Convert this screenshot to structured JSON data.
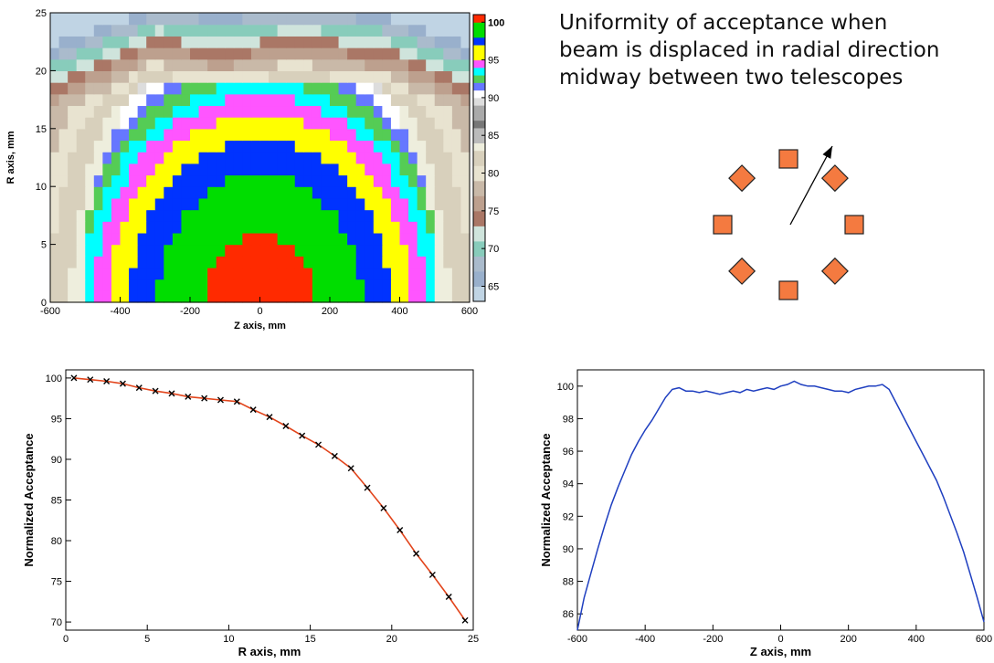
{
  "caption": {
    "lines": [
      "Uniformity of acceptance when",
      "beam is displaced in radial direction",
      "midway between two telescopes"
    ]
  },
  "colors": {
    "telescope_fill": "#f47a40",
    "telescope_stroke": "#222222",
    "fit_line": "#e2451c",
    "scan_line": "#1f3fc0",
    "marker": "#000000"
  },
  "telescopes": {
    "count": 8,
    "shapes": [
      "square",
      "diamond",
      "square",
      "diamond",
      "square",
      "diamond",
      "square",
      "diamond"
    ]
  },
  "chart_data": [
    {
      "type": "heatmap",
      "title": "",
      "xlabel": "Z axis, mm",
      "ylabel": "R axis, mm",
      "xlim": [
        -600,
        600
      ],
      "ylim": [
        0,
        25
      ],
      "x_ticks": [
        "-600",
        "-400",
        "-200",
        "0",
        "200",
        "400",
        "600"
      ],
      "y_ticks": [
        "0",
        "5",
        "10",
        "15",
        "20",
        "25"
      ],
      "z_ticks": [
        "100",
        "95",
        "90",
        "85",
        "80",
        "75",
        "70",
        "65"
      ],
      "zlim": [
        63,
        101
      ],
      "grid": false,
      "contour_half_width": [
        {
          "r": 0,
          "widths": [
            330,
            340,
            360,
            380,
            410,
            450,
            500,
            540
          ]
        },
        {
          "r": 5,
          "widths": [
            310,
            330,
            350,
            370,
            400,
            445,
            490,
            530
          ]
        },
        {
          "r": 10,
          "widths": [
            150,
            250,
            300,
            330,
            360,
            410,
            460,
            500
          ]
        },
        {
          "r": 15,
          "widths": [
            0,
            0,
            0,
            100,
            250,
            330,
            390,
            430
          ]
        },
        {
          "r": 20,
          "widths": [
            0,
            0,
            0,
            0,
            0,
            100,
            230,
            320
          ]
        }
      ],
      "contour_levels": [
        100,
        97.5,
        95,
        93,
        91,
        88,
        83,
        78
      ]
    },
    {
      "type": "scatter",
      "title": "",
      "xlabel": "R axis, mm",
      "ylabel": "Normalized Acceptance",
      "xlim": [
        0,
        25
      ],
      "ylim": [
        69,
        101
      ],
      "x_ticks": [
        "0",
        "5",
        "10",
        "15",
        "20",
        "25"
      ],
      "y_ticks": [
        "100",
        "95",
        "90",
        "85",
        "80",
        "75",
        "70"
      ],
      "grid": false,
      "series": [
        {
          "x": [
            0.5,
            1.5,
            2.5,
            3.5,
            4.5,
            5.5,
            6.5,
            7.5,
            8.5,
            9.5,
            10.5,
            11.5,
            12.5,
            13.5,
            14.5,
            15.5,
            16.5,
            17.5,
            18.5,
            19.5,
            20.5,
            21.5,
            22.5,
            23.5,
            24.5
          ],
          "y": [
            100,
            99.8,
            99.6,
            99.3,
            98.8,
            98.4,
            98.1,
            97.7,
            97.5,
            97.3,
            97.1,
            96.1,
            95.2,
            94.1,
            92.9,
            91.8,
            90.4,
            88.9,
            86.5,
            84.0,
            81.3,
            78.4,
            75.8,
            73.1,
            70.2
          ]
        }
      ]
    },
    {
      "type": "line",
      "title": "",
      "xlabel": "Z axis, mm",
      "ylabel": "Normalized Acceptance",
      "xlim": [
        -600,
        600
      ],
      "ylim": [
        85,
        101
      ],
      "x_ticks": [
        "-600",
        "-400",
        "-200",
        "0",
        "200",
        "400",
        "600"
      ],
      "y_ticks": [
        "100",
        "98",
        "96",
        "94",
        "92",
        "90",
        "88",
        "86"
      ],
      "grid": false,
      "series": [
        {
          "x": [
            -600,
            -580,
            -560,
            -540,
            -520,
            -500,
            -480,
            -460,
            -440,
            -420,
            -400,
            -380,
            -360,
            -340,
            -320,
            -300,
            -280,
            -260,
            -240,
            -220,
            -200,
            -180,
            -160,
            -140,
            -120,
            -100,
            -80,
            -60,
            -40,
            -20,
            0,
            20,
            40,
            60,
            80,
            100,
            120,
            140,
            160,
            180,
            200,
            220,
            240,
            260,
            280,
            300,
            320,
            340,
            360,
            380,
            400,
            420,
            440,
            460,
            480,
            500,
            520,
            540,
            560,
            580,
            600
          ],
          "y": [
            85.0,
            87.0,
            88.5,
            90.0,
            91.4,
            92.7,
            93.8,
            94.8,
            95.8,
            96.6,
            97.3,
            97.9,
            98.6,
            99.3,
            99.8,
            99.9,
            99.7,
            99.7,
            99.6,
            99.7,
            99.6,
            99.5,
            99.6,
            99.7,
            99.6,
            99.8,
            99.7,
            99.8,
            99.9,
            99.8,
            100.0,
            100.1,
            100.3,
            100.1,
            100.0,
            100.0,
            99.9,
            99.8,
            99.7,
            99.7,
            99.6,
            99.8,
            99.9,
            100.0,
            100.0,
            100.1,
            99.8,
            99.0,
            98.2,
            97.4,
            96.6,
            95.8,
            95.0,
            94.2,
            93.2,
            92.1,
            91.0,
            89.8,
            88.4,
            87.0,
            85.5
          ]
        }
      ]
    }
  ]
}
